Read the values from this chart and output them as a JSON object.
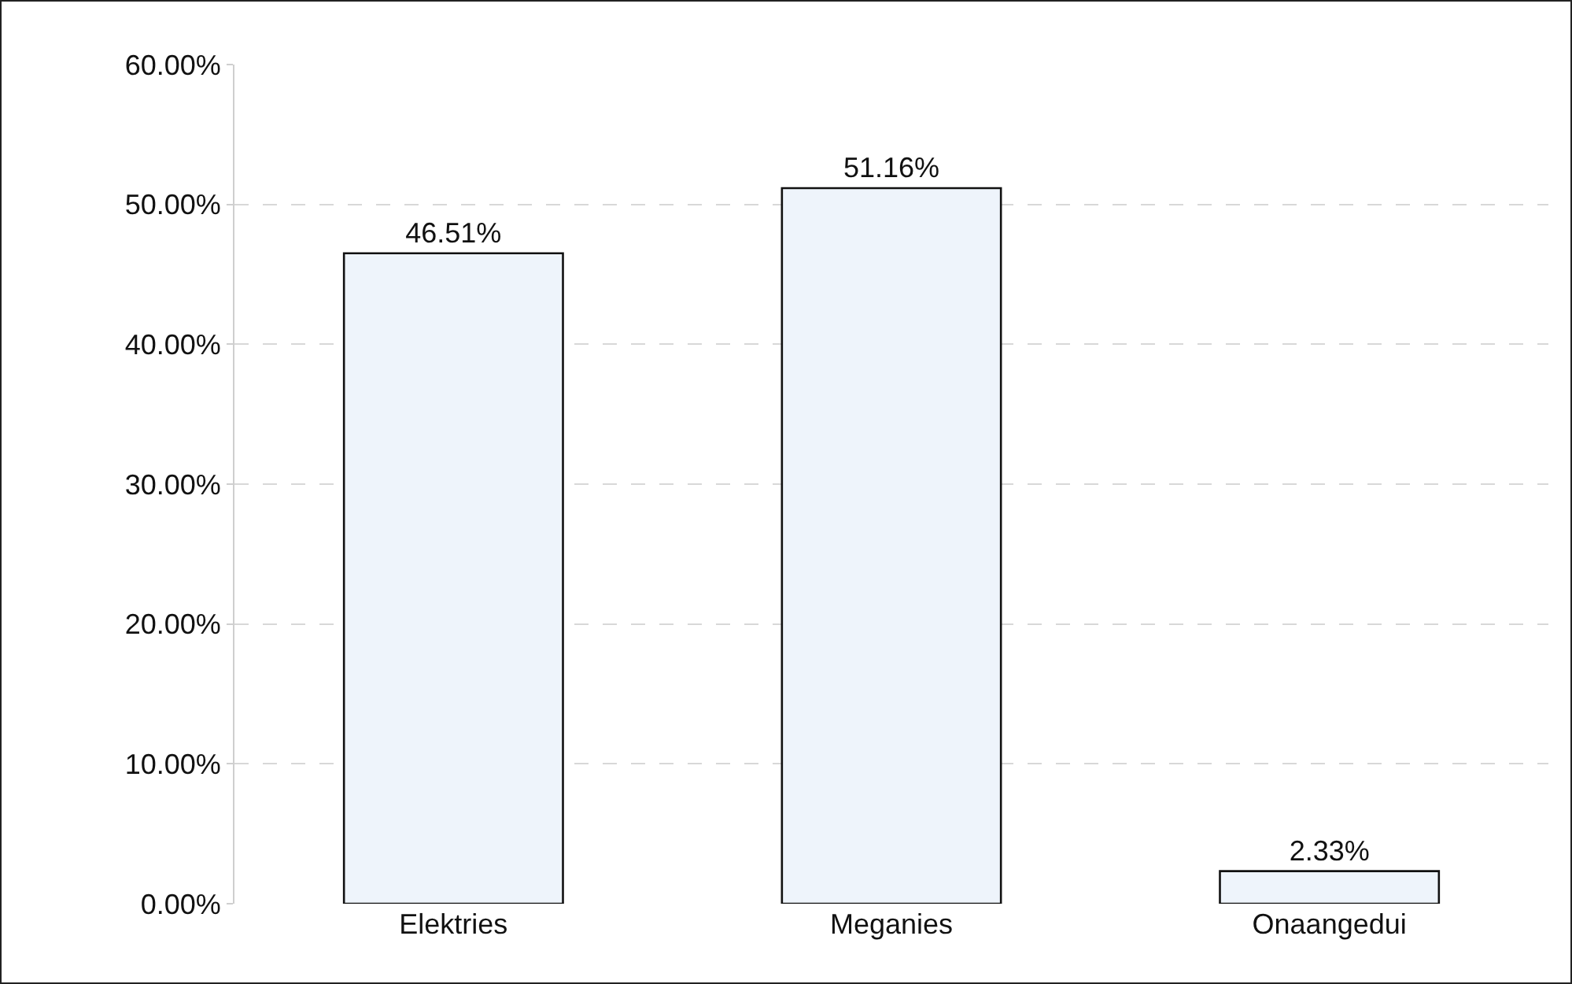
{
  "chart_data": {
    "type": "bar",
    "categories": [
      "Elektries",
      "Meganies",
      "Onaangedui"
    ],
    "values": [
      46.51,
      51.16,
      2.33
    ],
    "value_labels": [
      "46.51%",
      "51.16%",
      "2.33%"
    ],
    "color": "#eef4fb",
    "ylim": [
      0,
      60
    ],
    "yticks": [
      {
        "value": 0,
        "label": "0.00%"
      },
      {
        "value": 10,
        "label": "10.00%"
      },
      {
        "value": 20,
        "label": "20.00%"
      },
      {
        "value": 30,
        "label": "30.00%"
      },
      {
        "value": 40,
        "label": "40.00%"
      },
      {
        "value": 50,
        "label": "50.00%"
      },
      {
        "value": 60,
        "label": "60.00%"
      }
    ],
    "grid": "y"
  }
}
